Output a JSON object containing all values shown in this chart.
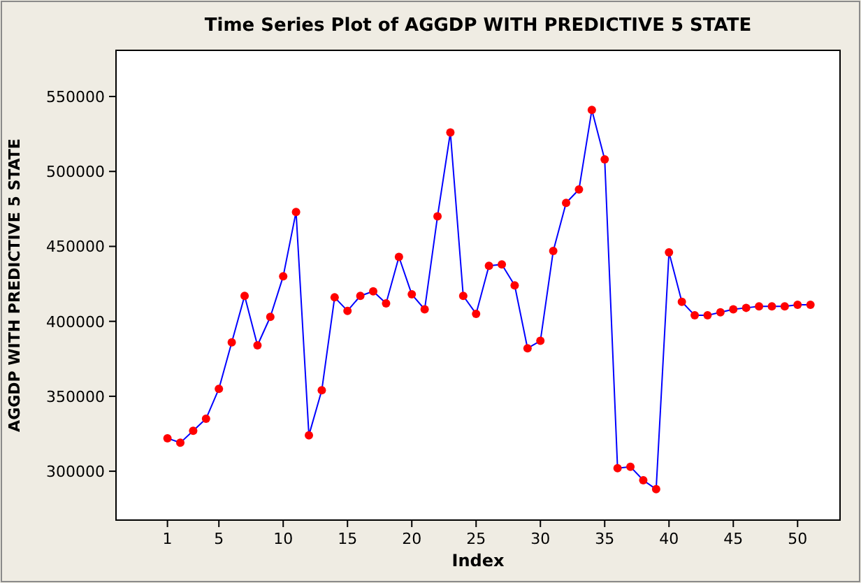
{
  "chart_data": {
    "type": "line",
    "title": "Time Series Plot of AGGDP WITH PREDICTIVE 5 STATE",
    "xlabel": "Index",
    "ylabel": "AGGDP WITH PREDICTIVE 5 STATE",
    "x": [
      1,
      2,
      3,
      4,
      5,
      6,
      7,
      8,
      9,
      10,
      11,
      12,
      13,
      14,
      15,
      16,
      17,
      18,
      19,
      20,
      21,
      22,
      23,
      24,
      25,
      26,
      27,
      28,
      29,
      30,
      31,
      32,
      33,
      34,
      35,
      36,
      37,
      38,
      39,
      40,
      41,
      42,
      43,
      44,
      45,
      46,
      47,
      48,
      49,
      50,
      51
    ],
    "series": [
      {
        "color": "#0000ff",
        "values": [
          322000,
          319000,
          327000,
          335000,
          355000,
          386000,
          417000,
          384000,
          403000,
          430000,
          473000,
          324000,
          354000,
          416000,
          407000,
          417000,
          420000,
          412000,
          443000,
          418000,
          408000,
          470000,
          526000,
          417000,
          405000,
          437000,
          438000,
          424000,
          382000,
          387000,
          447000,
          479000,
          488000,
          541000,
          508000,
          302000,
          303000,
          294000,
          288000,
          446000,
          413000,
          404000,
          404000,
          406000,
          408000,
          409000,
          410000,
          410000,
          410000,
          411000,
          411000
        ]
      }
    ],
    "marker": "circle",
    "line_style": "solid",
    "xlim": [
      -3,
      53.3
    ],
    "xticks": [
      1,
      5,
      10,
      15,
      20,
      25,
      30,
      35,
      40,
      45,
      50
    ],
    "ylim": [
      267400,
      580800
    ],
    "yticks": [
      300000,
      350000,
      400000,
      450000,
      500000,
      550000
    ]
  }
}
